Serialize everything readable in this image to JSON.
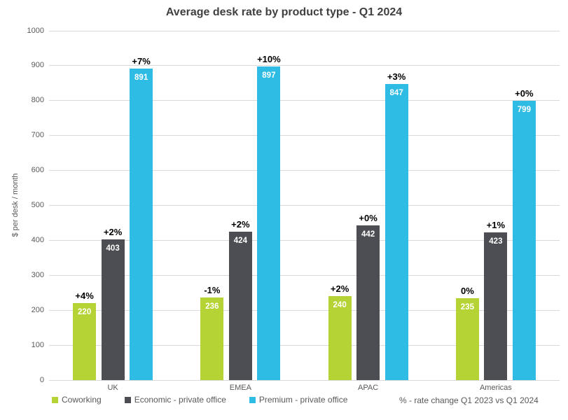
{
  "chart_data": {
    "type": "bar",
    "title": "Average desk rate by product type - Q1 2024",
    "ylabel": "$ per desk / month",
    "xlabel": "",
    "ylim": [
      0,
      1000
    ],
    "ytick_step": 100,
    "grid": "horizontal",
    "legend_position": "bottom",
    "categories": [
      "UK",
      "EMEA",
      "APAC",
      "Americas"
    ],
    "series": [
      {
        "name": "Coworking",
        "color": "#b5d334",
        "values": [
          220,
          236,
          240,
          235
        ],
        "change_labels": [
          "+4%",
          "-1%",
          "+2%",
          "0%"
        ]
      },
      {
        "name": "Economic - private office",
        "color": "#4d4e53",
        "values": [
          403,
          424,
          442,
          423
        ],
        "change_labels": [
          "+2%",
          "+2%",
          "+0%",
          "+1%"
        ]
      },
      {
        "name": "Premium - private office",
        "color": "#2ebce4",
        "values": [
          891,
          897,
          847,
          799
        ],
        "change_labels": [
          "+7%",
          "+10%",
          "+3%",
          "+0%"
        ]
      }
    ],
    "note": "% - rate change Q1 2023 vs Q1 2024",
    "colors": {
      "title_text": "#404040",
      "axis_text": "#595959",
      "gridline": "#d9d9d9",
      "bar_value_text": "#ffffff",
      "change_label_text": "#000000",
      "background": "#ffffff"
    }
  }
}
